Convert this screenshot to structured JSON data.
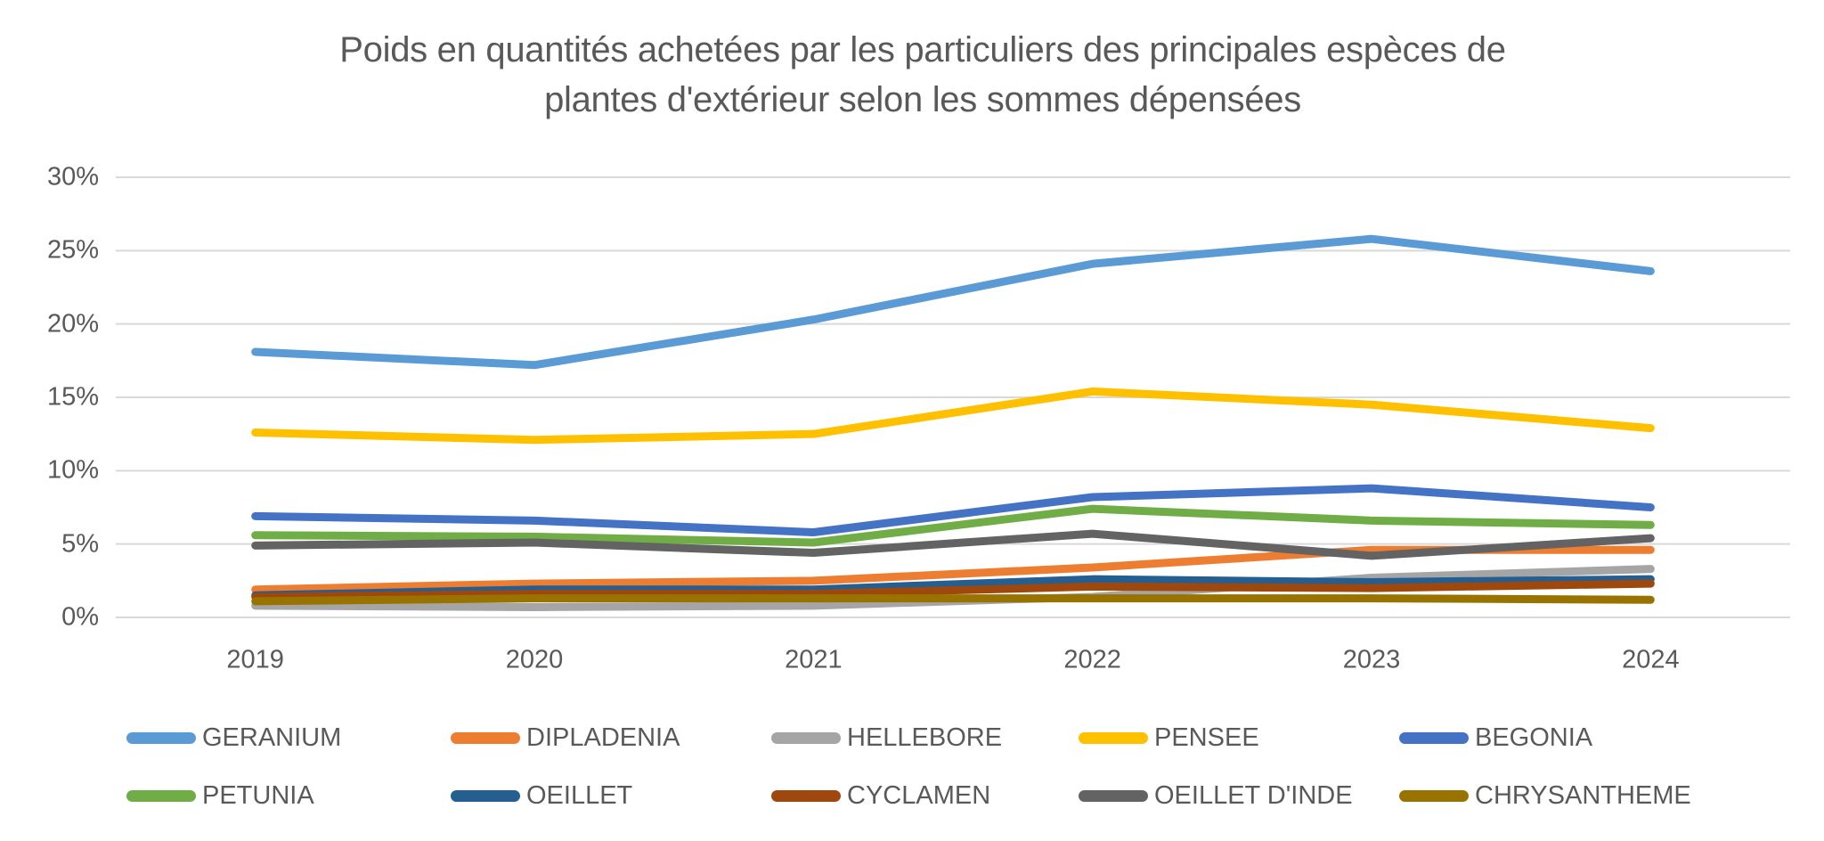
{
  "title": {
    "line1": "Poids en quantités achetées par les particuliers des principales espèces de",
    "line2": "plantes d'extérieur selon les sommes dépensées"
  },
  "chart_data": {
    "type": "line",
    "title": "Poids en quantités achetées par les particuliers des principales espèces de plantes d'extérieur selon les sommes dépensées",
    "categories": [
      "2019",
      "2020",
      "2021",
      "2022",
      "2023",
      "2024"
    ],
    "series": [
      {
        "name": "GERANIUM",
        "color": "#5B9BD5",
        "values": [
          18.1,
          17.2,
          20.3,
          24.1,
          25.8,
          23.6
        ]
      },
      {
        "name": "DIPLADENIA",
        "color": "#ED7D31",
        "values": [
          1.9,
          2.3,
          2.5,
          3.4,
          4.6,
          4.6
        ]
      },
      {
        "name": "HELLEBORE",
        "color": "#A5A5A5",
        "values": [
          0.8,
          0.7,
          0.8,
          1.4,
          2.7,
          3.3
        ]
      },
      {
        "name": "PENSEE",
        "color": "#FFC000",
        "values": [
          12.6,
          12.1,
          12.5,
          15.4,
          14.5,
          12.9
        ]
      },
      {
        "name": "BEGONIA",
        "color": "#4472C4",
        "values": [
          6.9,
          6.6,
          5.8,
          8.2,
          8.8,
          7.5
        ]
      },
      {
        "name": "PETUNIA",
        "color": "#70AD47",
        "values": [
          5.6,
          5.5,
          5.1,
          7.4,
          6.6,
          6.3
        ]
      },
      {
        "name": "OEILLET",
        "color": "#255E91",
        "values": [
          1.5,
          1.9,
          1.9,
          2.6,
          2.4,
          2.6
        ]
      },
      {
        "name": "CYCLAMEN",
        "color": "#9E480E",
        "values": [
          1.4,
          1.6,
          1.6,
          2.1,
          2.0,
          2.3
        ]
      },
      {
        "name": "OEILLET D'INDE",
        "color": "#636363",
        "values": [
          4.9,
          5.1,
          4.4,
          5.7,
          4.2,
          5.4
        ]
      },
      {
        "name": "CHRYSANTHEME",
        "color": "#997300",
        "values": [
          1.1,
          1.3,
          1.3,
          1.3,
          1.3,
          1.2
        ]
      }
    ],
    "y_ticks_percent": [
      0,
      5,
      10,
      15,
      20,
      25,
      30
    ],
    "y_tick_suffix": "%",
    "ylim": [
      0,
      30
    ],
    "grid": true,
    "legend_position": "bottom",
    "axis_text_color": "#595959",
    "gridline_color": "#D9D9D9",
    "background_color": "#FFFFFF"
  }
}
